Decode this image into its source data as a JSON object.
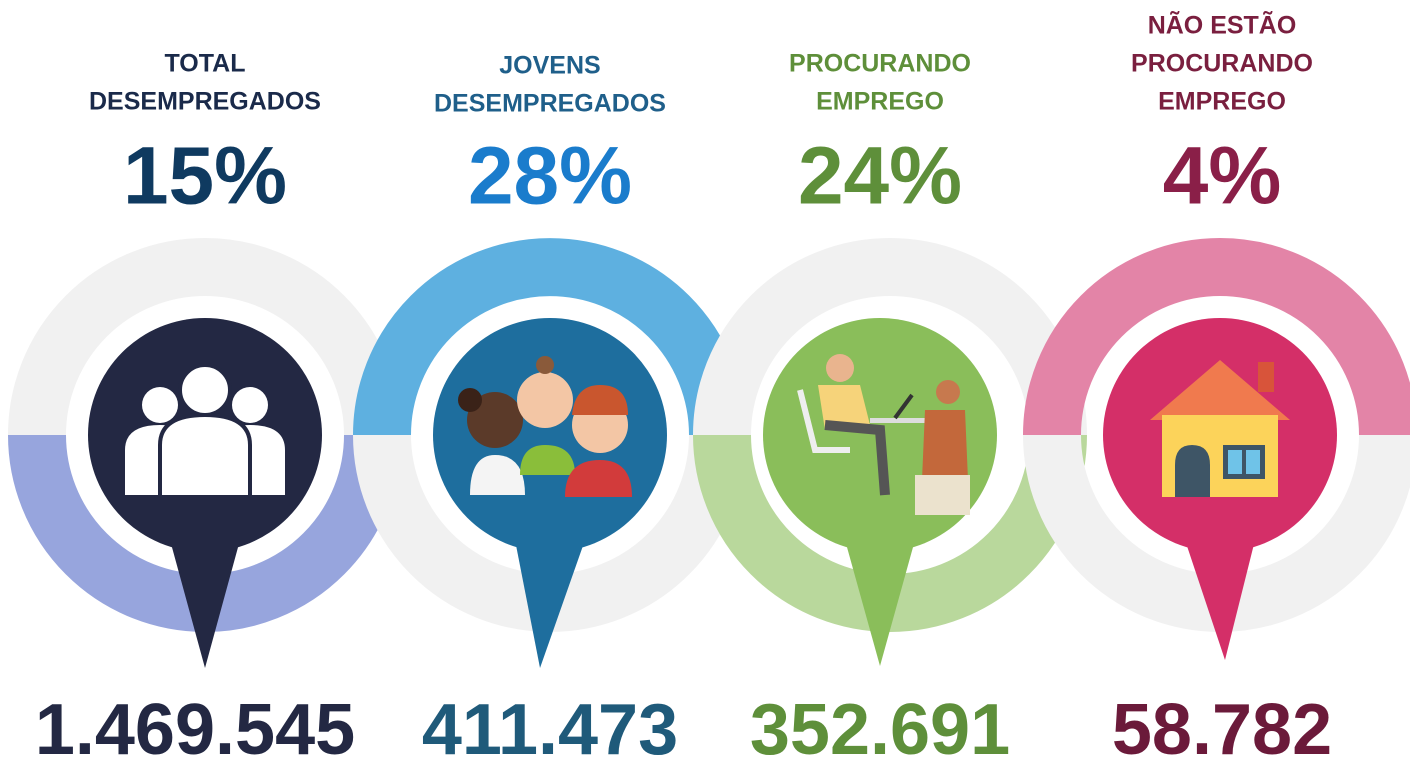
{
  "items": [
    {
      "title": [
        "TOTAL",
        "DESEMPREGADOS"
      ],
      "percent": "15%",
      "count": "1.469.545"
    },
    {
      "title": [
        "JOVENS",
        "DESEMPREGADOS"
      ],
      "percent": "28%",
      "count": "411.473"
    },
    {
      "title": [
        "PROCURANDO",
        "EMPREGO"
      ],
      "percent": "24%",
      "count": "352.691"
    },
    {
      "title": [
        "NÃO ESTÃO",
        "PROCURANDO",
        "EMPREGO"
      ],
      "percent": "4%",
      "count": "58.782"
    }
  ]
}
